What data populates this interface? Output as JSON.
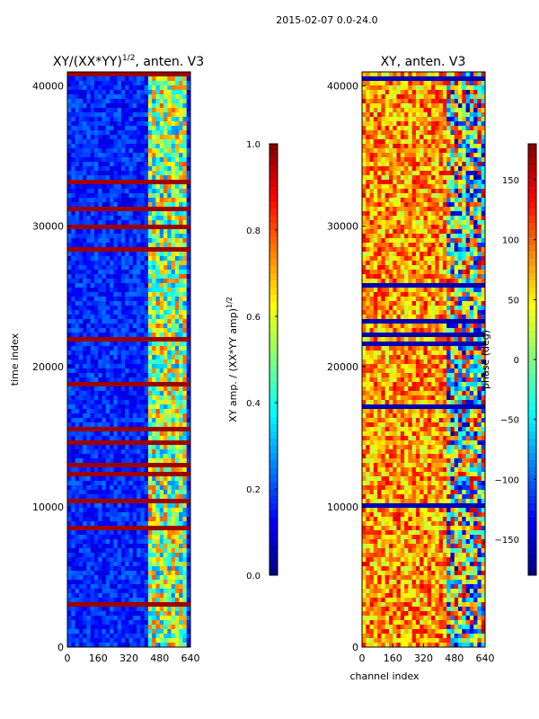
{
  "figure_title": "2015-02-07 0.0-24.0",
  "colors": {
    "jet": [
      "#00007f",
      "#0000ff",
      "#007fff",
      "#00ffff",
      "#7fff7f",
      "#ffff00",
      "#ff7f00",
      "#ff0000",
      "#7f0000"
    ],
    "divider": "#000000"
  },
  "chart_data": [
    {
      "type": "heatmap",
      "title": "XY/(XX*YY)",
      "title_superscript": "1/2",
      "title_suffix": ", anten. V3",
      "xlabel": "",
      "ylabel": "time index",
      "xlim": [
        0,
        640
      ],
      "ylim": [
        0,
        41000
      ],
      "xticks": [
        0,
        160,
        320,
        480,
        640
      ],
      "yticks": [
        0,
        10000,
        20000,
        30000,
        40000
      ],
      "xtick_labels": [
        "0",
        "160",
        "320",
        "480",
        "640"
      ],
      "ytick_labels": [
        "0",
        "10000",
        "20000",
        "30000",
        "40000"
      ],
      "colorbar": {
        "label": "XY amp. / (XX*YY amp)",
        "label_superscript": "1/2",
        "range": [
          0,
          1
        ],
        "ticks": [
          0,
          0.2,
          0.4,
          0.6,
          0.8,
          1.0
        ],
        "tick_labels": [
          "0.0",
          "0.2",
          "0.4",
          "0.6",
          "0.8",
          "1.0"
        ]
      }
    },
    {
      "type": "heatmap",
      "title": "XY, anten. V3",
      "xlabel": "channel index",
      "ylabel": "",
      "xlim": [
        0,
        640
      ],
      "ylim": [
        0,
        41000
      ],
      "xticks": [
        0,
        160,
        320,
        480,
        640
      ],
      "yticks": [
        0,
        10000,
        20000,
        30000,
        40000
      ],
      "xtick_labels": [
        "0",
        "160",
        "320",
        "480",
        "640"
      ],
      "ytick_labels": [
        "0",
        "10000",
        "20000",
        "30000",
        "40000"
      ],
      "colorbar": {
        "label": "phase (deg)",
        "range": [
          -180,
          180
        ],
        "ticks": [
          -150,
          -100,
          -50,
          0,
          50,
          100,
          150
        ],
        "tick_labels": [
          "−150",
          "−100",
          "−50",
          "0",
          "50",
          "100",
          "150"
        ]
      }
    }
  ]
}
